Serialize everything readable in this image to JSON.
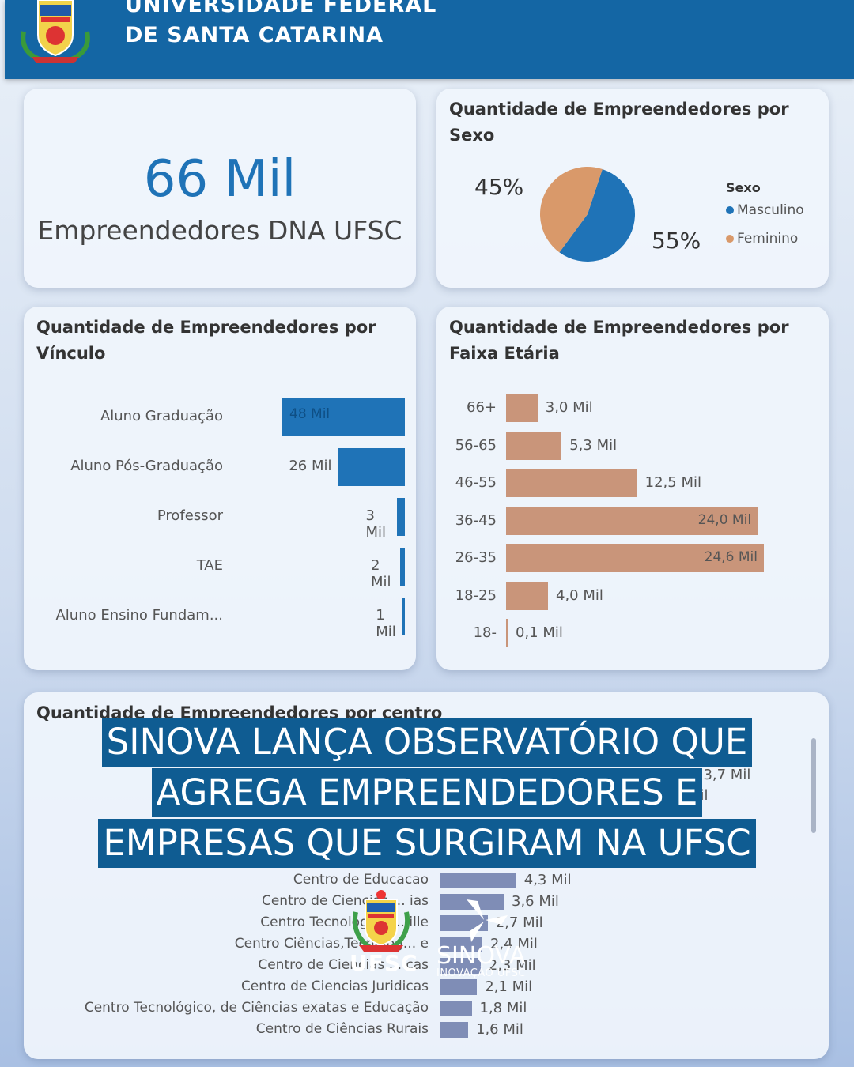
{
  "header": {
    "line1": "UNIVERSIDADE FEDERAL",
    "line2": "DE SANTA CATARINA"
  },
  "kpi": {
    "value": "66 Mil",
    "label": "Empreendedores DNA UFSC"
  },
  "sexo": {
    "title": "Quantidade de Empreendedores por Sexo",
    "legend_title": "Sexo",
    "items": [
      {
        "label": "Masculino",
        "pct": "55%",
        "color": "#1f73b7"
      },
      {
        "label": "Feminino",
        "pct": "45%",
        "color": "#d9996a"
      }
    ]
  },
  "vinculo": {
    "title": "Quantidade de Empreendedores por Vínculo",
    "color": "#1f73b7",
    "rows": [
      {
        "label": "Aluno Graduação",
        "value": 48,
        "text": "48 Mil"
      },
      {
        "label": "Aluno Pós-Graduação",
        "value": 26,
        "text": "26 Mil"
      },
      {
        "label": "Professor",
        "value": 3,
        "text": "3 Mil"
      },
      {
        "label": "TAE",
        "value": 2,
        "text": "2 Mil"
      },
      {
        "label": "Aluno Ensino Fundam...",
        "value": 1,
        "text": "1 Mil"
      }
    ]
  },
  "faixa": {
    "title": "Quantidade de Empreendedores por Faixa Etária",
    "color": "#c9957a",
    "rows": [
      {
        "label": "66+",
        "value": 3.0,
        "text": "3,0 Mil"
      },
      {
        "label": "56-65",
        "value": 5.3,
        "text": "5,3 Mil"
      },
      {
        "label": "46-55",
        "value": 12.5,
        "text": "12,5 Mil"
      },
      {
        "label": "36-45",
        "value": 24.0,
        "text": "24,0 Mil"
      },
      {
        "label": "26-35",
        "value": 24.6,
        "text": "24,6 Mil"
      },
      {
        "label": "18-25",
        "value": 4.0,
        "text": "4,0 Mil"
      },
      {
        "label": "18-",
        "value": 0.1,
        "text": "0,1 Mil"
      }
    ]
  },
  "centro": {
    "title": "Quantidade de Empreendedores por centro",
    "color": "#7f8db6",
    "partial_values": [
      "13,7 Mil",
      "Mil"
    ],
    "rows": [
      {
        "label": "Centro de Educacao",
        "value": 4.3,
        "text": "4,3 Mil"
      },
      {
        "label": "Centro de Ciencias ... ias",
        "value": 3.6,
        "text": "3,6 Mil"
      },
      {
        "label": "Centro Tecnologico ... ille",
        "value": 2.7,
        "text": "2,7 Mil"
      },
      {
        "label": "Centro Ciências,Tecnolog... e",
        "value": 2.4,
        "text": "2,4 Mil"
      },
      {
        "label": "Centro de Ciencias ... cas",
        "value": 2.3,
        "text": "2,3 Mil"
      },
      {
        "label": "Centro de Ciencias Juridicas",
        "value": 2.1,
        "text": "2,1 Mil"
      },
      {
        "label": "Centro Tecnológico, de Ciências exatas e Educação",
        "value": 1.8,
        "text": "1,8 Mil"
      },
      {
        "label": "Centro de Ciências Rurais",
        "value": 1.6,
        "text": "1,6 Mil"
      }
    ]
  },
  "headline": {
    "line1": "SINOVA LANÇA OBSERVATÓRIO QUE",
    "line2": "AGREGA EMPREENDEDORES E",
    "line3": "EMPRESAS QUE SURGIRAM NA UFSC"
  },
  "logos": {
    "ufsc": "UFSC",
    "sinova": "SINOVA",
    "sinova_sub": "INOVAÇÃO UFSC"
  }
}
